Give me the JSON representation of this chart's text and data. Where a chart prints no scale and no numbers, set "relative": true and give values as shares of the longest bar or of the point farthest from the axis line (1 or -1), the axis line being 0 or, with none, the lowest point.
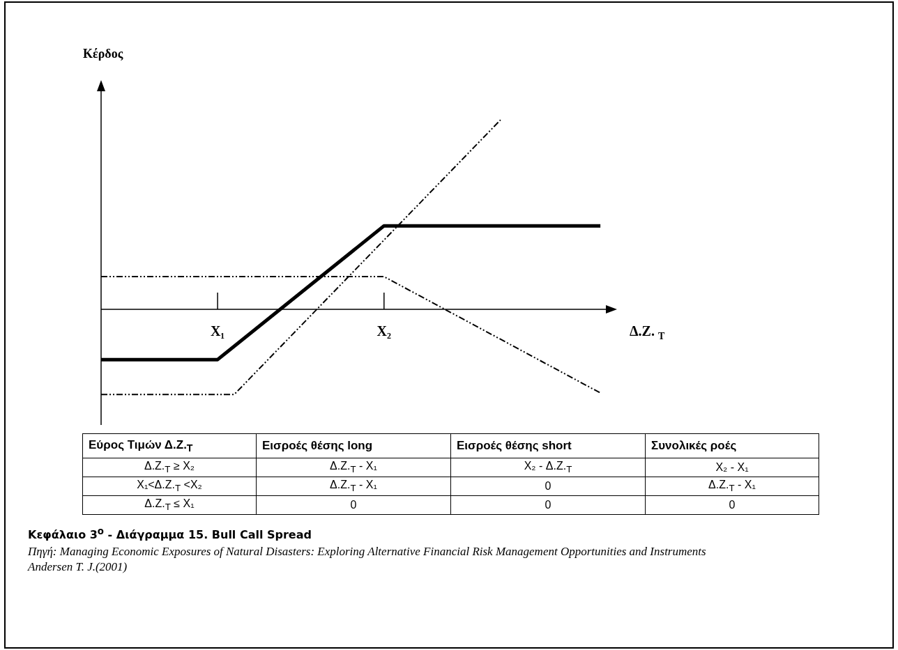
{
  "chart_data": [
    {
      "type": "line",
      "relative": true,
      "ylabel": "Κέρδος",
      "xlabel": "Δ.Ζ. $_{Τ}$",
      "categories": [
        null,
        null,
        null,
        null,
        null,
        null,
        null,
        "X₁",
        null,
        null,
        null,
        null,
        null,
        null,
        null,
        null,
        null,
        "X₂",
        null,
        null,
        null,
        null,
        null,
        null,
        null,
        null,
        null,
        null,
        null,
        null,
        null,
        null
      ],
      "tick_labels": "x",
      "legend": false,
      "marker": "none",
      "series": [
        {
          "color": "#000000",
          "line_style": "solid",
          "values": [
            -0.265,
            null,
            null,
            null,
            null,
            null,
            null,
            -0.265,
            null,
            null,
            null,
            null,
            null,
            null,
            null,
            null,
            null,
            0.441,
            null,
            null,
            null,
            null,
            null,
            null,
            null,
            null,
            null,
            null,
            null,
            null,
            0.441,
            null
          ]
        },
        {
          "color": "#000000",
          "line_style": "dashed",
          "values": [
            -0.449,
            null,
            null,
            null,
            null,
            null,
            null,
            null,
            -0.449,
            null,
            null,
            null,
            null,
            null,
            null,
            null,
            null,
            null,
            null,
            null,
            null,
            null,
            null,
            null,
            1,
            null,
            null,
            null,
            null,
            null,
            null,
            null
          ]
        },
        {
          "color": "#000000",
          "line_style": "dashed",
          "values": [
            0.173,
            null,
            null,
            null,
            null,
            null,
            null,
            null,
            null,
            null,
            null,
            null,
            null,
            null,
            null,
            null,
            null,
            0.173,
            null,
            null,
            null,
            null,
            null,
            null,
            null,
            null,
            null,
            null,
            null,
            null,
            -0.441,
            null
          ]
        }
      ],
      "annotations": [
        "Κεφάλαιο 3$^{ο}$ - Διάγραμμα 15. Bull Call Spread",
        "Πηγή: Managing Economic Exposures of Natural Disasters: Exploring Alternative Financial Risk Management Opportunities and Instruments Andersen T. J.(2001)"
      ]
    },
    {
      "type": "other",
      "annotations": [
        "Εύρος Τιμών Δ.Ζ.$_{Τ}$",
        "Εισροές θέσης long",
        "Εισροές θέσης short",
        "Συνολικές ροές",
        "Δ.Ζ.$_{Τ}$ ≥ X₂",
        "Δ.Ζ.$_{Τ}$ - X₁",
        "X₂ - Δ.Ζ.$_{Τ}$",
        "X₂ - X₁",
        "X₁<Δ.Ζ.$_{Τ}$ <X₂",
        "Δ.Ζ.$_{Τ}$ - X₁",
        "0",
        "Δ.Ζ.$_{Τ}$ - X₁",
        "Δ.Ζ.$_{Τ}$ ≤ X₁",
        "0",
        "0",
        "0"
      ]
    }
  ]
}
